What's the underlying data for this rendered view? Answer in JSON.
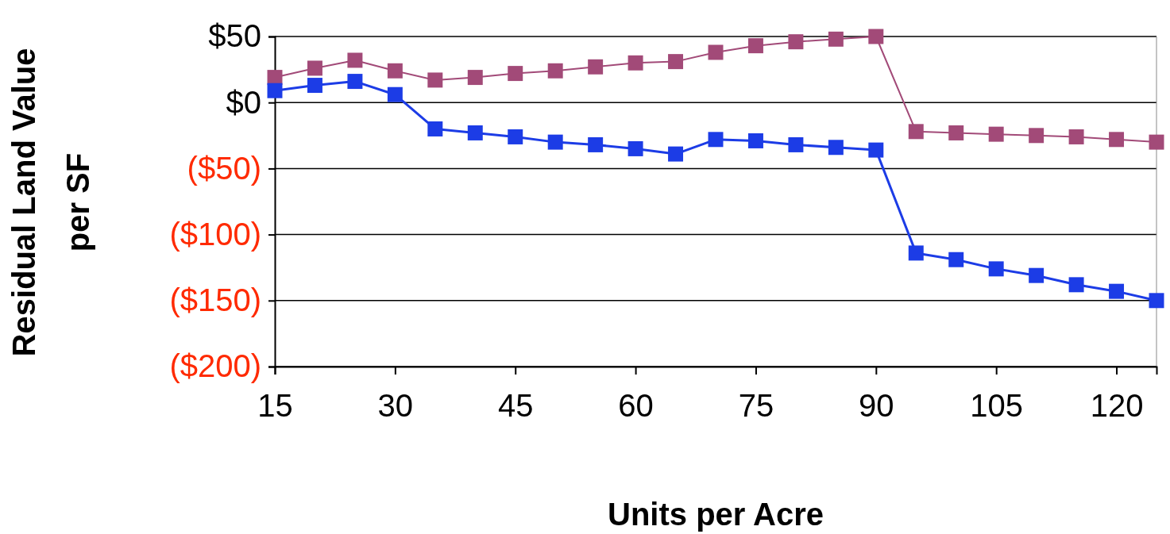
{
  "chart_data": {
    "type": "line",
    "xlabel": "Units per Acre",
    "ylabel": "Residual Land Value per SF",
    "x": [
      15,
      20,
      25,
      30,
      35,
      40,
      45,
      50,
      55,
      60,
      65,
      70,
      75,
      80,
      85,
      90,
      95,
      100,
      105,
      110,
      115,
      120,
      125
    ],
    "series": [
      {
        "color": "#a24a78",
        "values": [
          19,
          26,
          32,
          24,
          17,
          19,
          22,
          24,
          27,
          30,
          31,
          38,
          43,
          46,
          48,
          50,
          -22,
          -23,
          -24,
          -25,
          -26,
          -28,
          -30
        ]
      },
      {
        "color": "#1c3ce6",
        "values": [
          9,
          13,
          16,
          6,
          -20,
          -23,
          -26,
          -30,
          -32,
          -35,
          -39,
          -28,
          -29,
          -32,
          -34,
          -36,
          -114,
          -119,
          -126,
          -131,
          -138,
          -143,
          -150
        ]
      }
    ],
    "xlim": [
      15,
      125
    ],
    "xticks": [
      15,
      30,
      45,
      60,
      75,
      90,
      105,
      120
    ],
    "ylim": [
      -200,
      50
    ],
    "yticks": [
      {
        "value": -200,
        "label": "($200)"
      },
      {
        "value": -150,
        "label": "($150)"
      },
      {
        "value": -100,
        "label": "($100)"
      },
      {
        "value": -50,
        "label": "($50)"
      },
      {
        "value": 0,
        "label": "$0"
      },
      {
        "value": 50,
        "label": "$50"
      }
    ],
    "grid": "y",
    "marker": "square",
    "line_style": "solid"
  }
}
